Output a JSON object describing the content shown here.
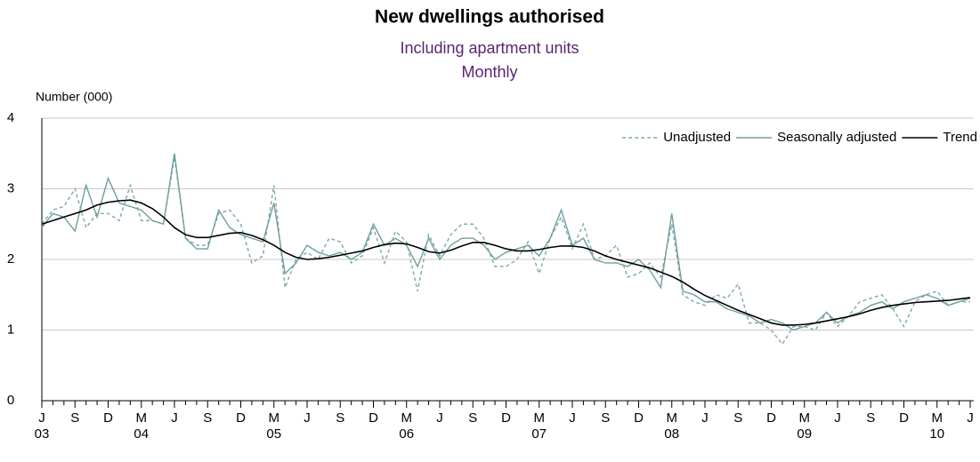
{
  "chart_data": {
    "type": "line",
    "title": "New dwellings authorised",
    "subtitle": "Including apartment units",
    "subtitle2": "Monthly",
    "y_axis_label": "Number (000)",
    "categories": [
      "J",
      null,
      null,
      "S",
      null,
      null,
      "D",
      null,
      null,
      "M",
      null,
      null,
      "J",
      null,
      null,
      "S",
      null,
      null,
      "D",
      null,
      null,
      "M",
      null,
      null,
      "J",
      null,
      null,
      "S",
      null,
      null,
      "D",
      null,
      null,
      "M",
      null,
      null,
      "J",
      null,
      null,
      "S",
      null,
      null,
      "D",
      null,
      null,
      "M",
      null,
      null,
      "J",
      null,
      null,
      "S",
      null,
      null,
      "D",
      null,
      null,
      "M",
      null,
      null,
      "J",
      null,
      null,
      "S",
      null,
      null,
      "D",
      null,
      null,
      "M",
      null,
      null,
      "J",
      null,
      null,
      "S",
      null,
      null,
      "D",
      null,
      null,
      "M",
      null,
      null,
      "J"
    ],
    "category_years": [
      "03",
      null,
      null,
      null,
      null,
      null,
      null,
      null,
      null,
      "04",
      null,
      null,
      null,
      null,
      null,
      null,
      null,
      null,
      null,
      null,
      null,
      "05",
      null,
      null,
      null,
      null,
      null,
      null,
      null,
      null,
      null,
      null,
      null,
      "06",
      null,
      null,
      null,
      null,
      null,
      null,
      null,
      null,
      null,
      null,
      null,
      "07",
      null,
      null,
      null,
      null,
      null,
      null,
      null,
      null,
      null,
      null,
      null,
      "08",
      null,
      null,
      null,
      null,
      null,
      null,
      null,
      null,
      null,
      null,
      null,
      "09",
      null,
      null,
      null,
      null,
      null,
      null,
      null,
      null,
      null,
      null,
      null,
      "10",
      null,
      null,
      null
    ],
    "series": [
      {
        "name": "Unadjusted",
        "color": "#7fa9a9",
        "style": "dashed",
        "values": [
          2.5,
          2.7,
          2.75,
          3.0,
          2.45,
          2.65,
          2.65,
          2.55,
          3.05,
          2.55,
          2.55,
          2.5,
          3.45,
          2.3,
          2.2,
          2.2,
          2.65,
          2.7,
          2.5,
          1.95,
          2.05,
          3.05,
          1.6,
          2.0,
          2.1,
          2.0,
          2.3,
          2.25,
          1.95,
          2.05,
          2.45,
          1.95,
          2.4,
          2.25,
          1.55,
          2.35,
          2.05,
          2.35,
          2.5,
          2.5,
          2.3,
          1.9,
          1.9,
          2.0,
          2.25,
          1.8,
          2.3,
          2.6,
          2.15,
          2.5,
          2.0,
          2.05,
          2.2,
          1.75,
          1.8,
          1.95,
          1.75,
          2.5,
          1.5,
          1.4,
          1.35,
          1.5,
          1.45,
          1.65,
          1.1,
          1.1,
          1.0,
          0.8,
          1.05,
          1.05,
          1.0,
          1.25,
          1.05,
          1.2,
          1.4,
          1.45,
          1.5,
          1.3,
          1.05,
          1.4,
          1.5,
          1.55,
          1.35,
          1.4,
          1.4
        ]
      },
      {
        "name": "Seasonally adjusted",
        "color": "#6f9e9e",
        "style": "solid",
        "values": [
          2.45,
          2.65,
          2.6,
          2.4,
          3.05,
          2.6,
          3.15,
          2.8,
          2.75,
          2.7,
          2.55,
          2.5,
          3.5,
          2.3,
          2.15,
          2.15,
          2.7,
          2.45,
          2.35,
          2.3,
          2.25,
          2.8,
          1.8,
          1.95,
          2.2,
          2.1,
          2.05,
          2.1,
          2.0,
          2.1,
          2.5,
          2.2,
          2.3,
          2.2,
          1.9,
          2.3,
          2.0,
          2.2,
          2.3,
          2.3,
          2.2,
          2.0,
          2.1,
          2.15,
          2.2,
          2.05,
          2.3,
          2.7,
          2.2,
          2.3,
          2.0,
          1.95,
          1.95,
          1.9,
          2.0,
          1.85,
          1.6,
          2.65,
          1.55,
          1.5,
          1.4,
          1.4,
          1.3,
          1.25,
          1.2,
          1.1,
          1.15,
          1.1,
          1.0,
          1.05,
          1.1,
          1.25,
          1.1,
          1.2,
          1.25,
          1.35,
          1.4,
          1.3,
          1.4,
          1.45,
          1.5,
          1.45,
          1.35,
          1.4,
          1.45
        ]
      },
      {
        "name": "Trend",
        "color": "#000000",
        "style": "solid",
        "values": [
          2.5,
          2.55,
          2.6,
          2.65,
          2.7,
          2.77,
          2.81,
          2.83,
          2.84,
          2.8,
          2.72,
          2.6,
          2.45,
          2.35,
          2.31,
          2.31,
          2.34,
          2.37,
          2.38,
          2.34,
          2.28,
          2.2,
          2.1,
          2.03,
          2.0,
          2.01,
          2.03,
          2.06,
          2.09,
          2.12,
          2.17,
          2.21,
          2.23,
          2.22,
          2.17,
          2.11,
          2.09,
          2.13,
          2.19,
          2.24,
          2.24,
          2.2,
          2.15,
          2.12,
          2.12,
          2.14,
          2.17,
          2.19,
          2.19,
          2.17,
          2.12,
          2.05,
          2.0,
          1.96,
          1.92,
          1.88,
          1.82,
          1.76,
          1.68,
          1.58,
          1.49,
          1.42,
          1.35,
          1.28,
          1.22,
          1.16,
          1.1,
          1.07,
          1.07,
          1.08,
          1.1,
          1.13,
          1.16,
          1.19,
          1.23,
          1.28,
          1.32,
          1.35,
          1.37,
          1.39,
          1.4,
          1.41,
          1.42,
          1.44,
          1.46
        ]
      }
    ],
    "ylim": [
      0,
      4
    ],
    "yticks": [
      0,
      1,
      2,
      3,
      4
    ],
    "grid": true,
    "legend": "top-right"
  }
}
